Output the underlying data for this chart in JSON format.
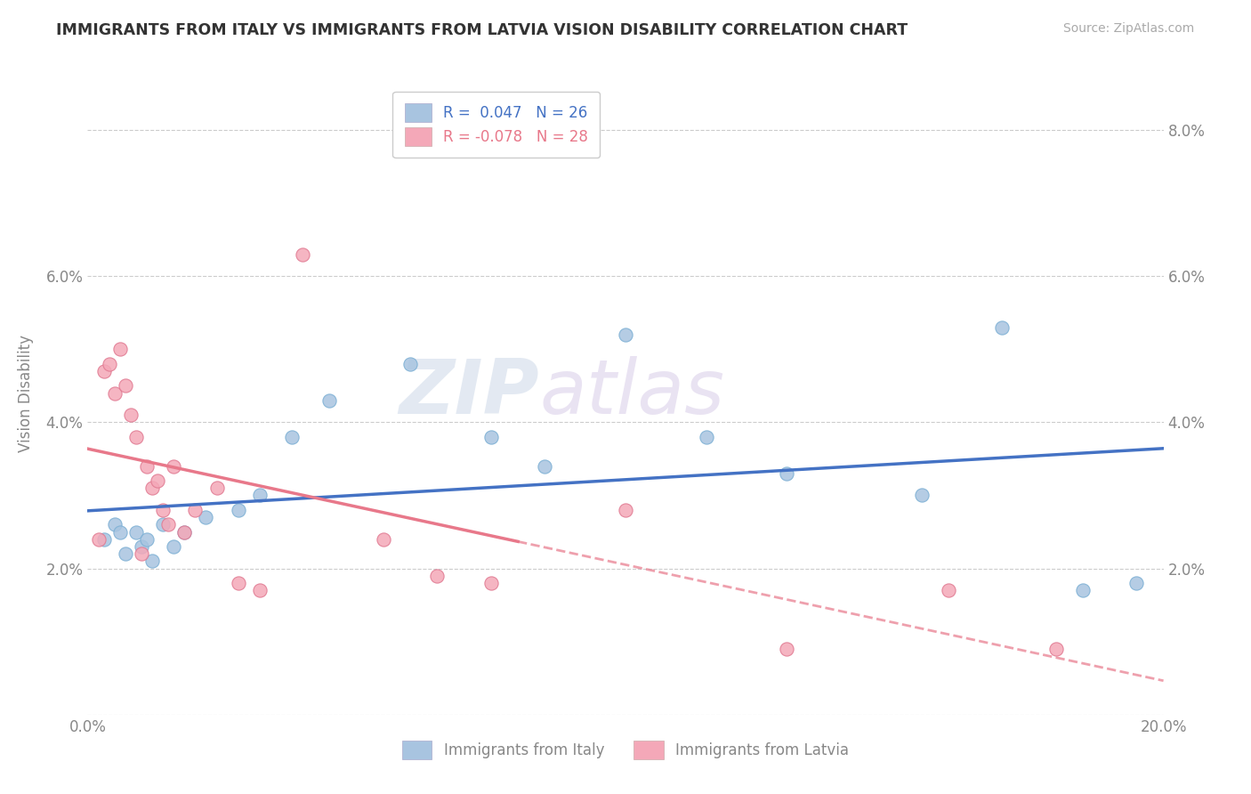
{
  "title": "IMMIGRANTS FROM ITALY VS IMMIGRANTS FROM LATVIA VISION DISABILITY CORRELATION CHART",
  "source": "Source: ZipAtlas.com",
  "xlabel": "",
  "ylabel": "Vision Disability",
  "xlim": [
    0.0,
    0.2
  ],
  "ylim": [
    0.0,
    0.088
  ],
  "xticks": [
    0.0,
    0.05,
    0.1,
    0.15,
    0.2
  ],
  "xtick_labels": [
    "0.0%",
    "",
    "",
    "",
    "20.0%"
  ],
  "yticks": [
    0.0,
    0.02,
    0.04,
    0.06,
    0.08
  ],
  "left_ytick_labels": [
    "",
    "2.0%",
    "4.0%",
    "6.0%",
    ""
  ],
  "right_ytick_labels": [
    "",
    "2.0%",
    "4.0%",
    "6.0%",
    "8.0%"
  ],
  "italy_color": "#a8c4e0",
  "italy_edge_color": "#7bafd4",
  "latvia_color": "#f4a8b8",
  "latvia_edge_color": "#e07890",
  "italy_R": 0.047,
  "italy_N": 26,
  "latvia_R": -0.078,
  "latvia_N": 28,
  "italy_x": [
    0.003,
    0.005,
    0.006,
    0.007,
    0.009,
    0.01,
    0.011,
    0.012,
    0.014,
    0.016,
    0.018,
    0.022,
    0.028,
    0.032,
    0.038,
    0.045,
    0.06,
    0.075,
    0.085,
    0.1,
    0.115,
    0.13,
    0.155,
    0.17,
    0.185,
    0.195
  ],
  "italy_y": [
    0.024,
    0.026,
    0.025,
    0.022,
    0.025,
    0.023,
    0.024,
    0.021,
    0.026,
    0.023,
    0.025,
    0.027,
    0.028,
    0.03,
    0.038,
    0.043,
    0.048,
    0.038,
    0.034,
    0.052,
    0.038,
    0.033,
    0.03,
    0.053,
    0.017,
    0.018
  ],
  "latvia_x": [
    0.002,
    0.003,
    0.004,
    0.005,
    0.006,
    0.007,
    0.008,
    0.009,
    0.01,
    0.011,
    0.012,
    0.013,
    0.014,
    0.015,
    0.016,
    0.018,
    0.02,
    0.024,
    0.028,
    0.032,
    0.04,
    0.055,
    0.065,
    0.075,
    0.1,
    0.13,
    0.16,
    0.18
  ],
  "latvia_y": [
    0.024,
    0.047,
    0.048,
    0.044,
    0.05,
    0.045,
    0.041,
    0.038,
    0.022,
    0.034,
    0.031,
    0.032,
    0.028,
    0.026,
    0.034,
    0.025,
    0.028,
    0.031,
    0.018,
    0.017,
    0.063,
    0.024,
    0.019,
    0.018,
    0.028,
    0.009,
    0.017,
    0.009
  ],
  "watermark_zip": "ZIP",
  "watermark_atlas": "atlas",
  "background_color": "#ffffff",
  "grid_color": "#cccccc",
  "italy_line_color": "#4472c4",
  "latvia_line_color": "#e8788a"
}
